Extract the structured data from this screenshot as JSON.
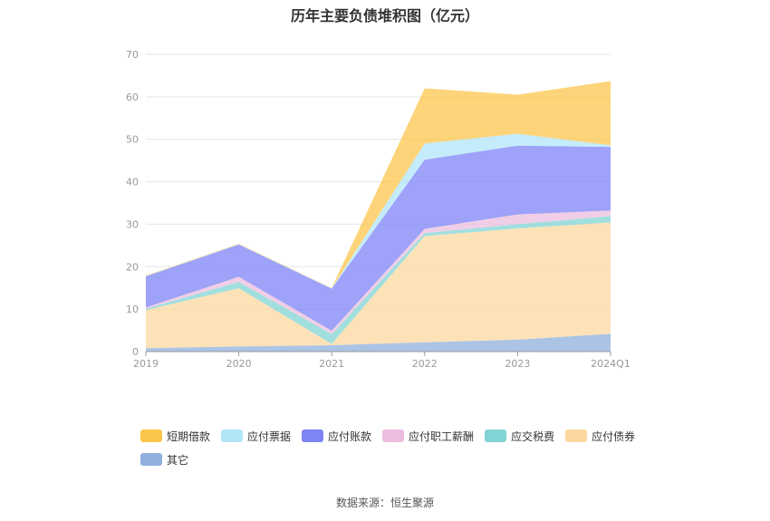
{
  "title": "历年主要负债堆积图（亿元）",
  "source": "数据来源：恒生聚源",
  "chart_data": {
    "type": "area",
    "stacked": true,
    "title": "历年主要负债堆积图（亿元）",
    "categories": [
      "2019",
      "2020",
      "2021",
      "2022",
      "2023",
      "2024Q1"
    ],
    "ylim": [
      0,
      70
    ],
    "yticks": [
      0,
      10,
      20,
      30,
      40,
      50,
      60,
      70
    ],
    "grid": true,
    "legend_position": "bottom",
    "series": [
      {
        "name": "其它",
        "color": "#8fb0dd",
        "values": [
          0.8,
          1.2,
          1.5,
          2.2,
          2.8,
          4.2
        ]
      },
      {
        "name": "应付债券",
        "color": "#fcd8a0",
        "values": [
          9.0,
          13.7,
          0.3,
          25.0,
          26.2,
          26.2
        ]
      },
      {
        "name": "应交税费",
        "color": "#81d4d4",
        "values": [
          0.3,
          1.5,
          2.3,
          0.7,
          1.0,
          1.5
        ]
      },
      {
        "name": "应付职工薪酬",
        "color": "#ecbddf",
        "values": [
          0.3,
          1.2,
          0.8,
          1.0,
          2.3,
          1.3
        ]
      },
      {
        "name": "应付账款",
        "color": "#7e83f5",
        "values": [
          7.3,
          7.6,
          9.9,
          16.3,
          16.2,
          15.0
        ]
      },
      {
        "name": "应付票据",
        "color": "#b2e5f8",
        "values": [
          0.1,
          0.1,
          0.1,
          3.8,
          2.8,
          0.4
        ]
      },
      {
        "name": "短期借款",
        "color": "#fcc54c",
        "values": [
          0.1,
          0.1,
          0.1,
          13.0,
          9.2,
          15.1
        ]
      }
    ],
    "legend_order": [
      "短期借款",
      "应付票据",
      "应付账款",
      "应付职工薪酬",
      "应交税费",
      "应付债券",
      "其它"
    ]
  }
}
